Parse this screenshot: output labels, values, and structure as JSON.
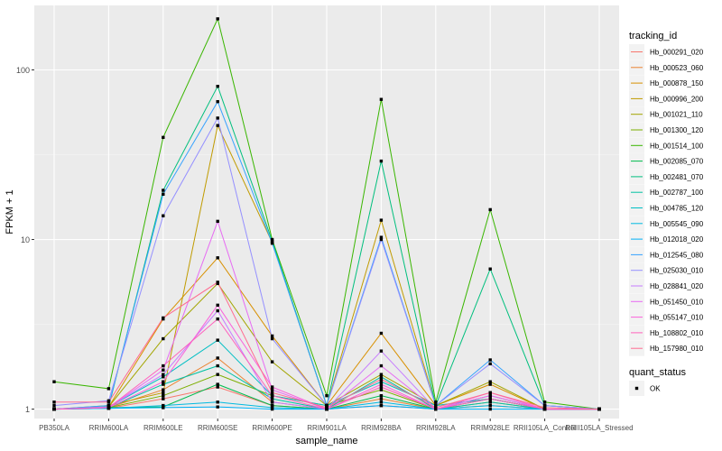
{
  "chart_data": {
    "type": "line",
    "title": "",
    "xlabel": "sample_name",
    "ylabel": "FPKM + 1",
    "y_scale": "log10",
    "ylim": [
      0.88,
      240
    ],
    "y_ticks": [
      {
        "value": 1,
        "label": "1"
      },
      {
        "value": 10,
        "label": "10"
      },
      {
        "value": 100,
        "label": "100"
      }
    ],
    "y_minor_ticks": [
      3.16,
      31.6
    ],
    "grid": true,
    "categories": [
      "PB350LA",
      "RRIM600LA",
      "RRIM600LE",
      "RRIM600SE",
      "RRIM600PE",
      "RRIM901LA",
      "RRIM928BA",
      "RRIM928LA",
      "RRIM928LE",
      "RRII105LA_Control",
      "RRII105LA_Stressed"
    ],
    "legend": {
      "position": "right",
      "title": "tracking_id",
      "shape_title": "quant_status",
      "shape_items": [
        "OK"
      ]
    },
    "series": [
      {
        "name": "Hb_000291_020",
        "color": "#F8766D",
        "values": [
          1.0,
          1.01,
          1.15,
          1.35,
          1.05,
          1.0,
          1.05,
          1.0,
          1.05,
          1.0,
          1.0
        ]
      },
      {
        "name": "Hb_000523_060",
        "color": "#EA8331",
        "values": [
          1.0,
          1.02,
          1.3,
          2.0,
          1.1,
          1.0,
          1.15,
          1.0,
          1.1,
          1.0,
          1.0
        ]
      },
      {
        "name": "Hb_000878_150",
        "color": "#D89000",
        "values": [
          1.0,
          1.03,
          3.4,
          7.8,
          2.7,
          1.05,
          2.8,
          1.05,
          1.4,
          1.0,
          1.0
        ]
      },
      {
        "name": "Hb_000996_200",
        "color": "#C09B00",
        "values": [
          1.0,
          1.05,
          1.25,
          47.0,
          9.6,
          1.05,
          13.0,
          1.05,
          1.15,
          1.0,
          1.0
        ]
      },
      {
        "name": "Hb_001021_110",
        "color": "#A3A500",
        "values": [
          1.0,
          1.03,
          2.6,
          5.5,
          1.9,
          1.05,
          1.6,
          1.05,
          1.45,
          1.0,
          1.0
        ]
      },
      {
        "name": "Hb_001300_120",
        "color": "#7CAE00",
        "values": [
          1.0,
          1.02,
          1.2,
          1.6,
          1.2,
          1.05,
          1.3,
          1.0,
          1.2,
          1.0,
          1.0
        ]
      },
      {
        "name": "Hb_001514_100",
        "color": "#39B600",
        "values": [
          1.45,
          1.32,
          40.0,
          200.0,
          10.0,
          1.2,
          67.0,
          1.1,
          15.0,
          1.1,
          1.0
        ]
      },
      {
        "name": "Hb_002085_070",
        "color": "#00BB4E",
        "values": [
          1.0,
          1.02,
          1.03,
          1.4,
          1.05,
          1.0,
          1.2,
          1.0,
          1.15,
          1.0,
          1.0
        ]
      },
      {
        "name": "Hb_002481_070",
        "color": "#00BF7D",
        "values": [
          1.0,
          1.03,
          19.5,
          80.0,
          9.8,
          1.05,
          29.0,
          1.05,
          6.7,
          1.05,
          1.0
        ]
      },
      {
        "name": "Hb_002787_100",
        "color": "#00C1A3",
        "values": [
          1.0,
          1.02,
          1.4,
          1.8,
          1.15,
          1.0,
          1.55,
          1.0,
          1.1,
          1.0,
          1.0
        ]
      },
      {
        "name": "Hb_004785_120",
        "color": "#00BFC4",
        "values": [
          1.0,
          1.03,
          1.55,
          2.55,
          1.2,
          1.05,
          1.45,
          1.05,
          1.15,
          1.0,
          1.0
        ]
      },
      {
        "name": "Hb_005545_090",
        "color": "#00BAE0",
        "values": [
          1.0,
          1.01,
          1.05,
          1.1,
          1.02,
          1.0,
          1.1,
          1.0,
          1.05,
          1.0,
          1.0
        ]
      },
      {
        "name": "Hb_012018_020",
        "color": "#00B0F6",
        "values": [
          1.0,
          1.01,
          1.02,
          1.03,
          1.0,
          1.0,
          1.05,
          1.0,
          1.0,
          1.0,
          1.0
        ]
      },
      {
        "name": "Hb_012545_080",
        "color": "#35A2FF",
        "values": [
          1.0,
          1.05,
          18.5,
          65.0,
          9.5,
          1.05,
          10.3,
          1.05,
          1.95,
          1.05,
          1.0
        ]
      },
      {
        "name": "Hb_025030_010",
        "color": "#9590FF",
        "values": [
          1.05,
          1.12,
          13.8,
          52.0,
          2.6,
          1.05,
          10.0,
          1.05,
          1.85,
          1.05,
          1.0
        ]
      },
      {
        "name": "Hb_028841_020",
        "color": "#C77CFF",
        "values": [
          1.0,
          1.03,
          1.6,
          3.8,
          1.1,
          1.0,
          2.2,
          1.0,
          1.2,
          1.0,
          1.0
        ]
      },
      {
        "name": "Hb_051450_010",
        "color": "#E76BF3",
        "values": [
          1.0,
          1.02,
          1.7,
          12.8,
          1.3,
          1.0,
          1.8,
          1.0,
          1.2,
          1.0,
          1.0
        ]
      },
      {
        "name": "Hb_055147_010",
        "color": "#FA62DB",
        "values": [
          1.0,
          1.02,
          1.45,
          4.1,
          1.35,
          1.0,
          1.4,
          1.0,
          1.25,
          1.0,
          1.0
        ]
      },
      {
        "name": "Hb_108802_010",
        "color": "#FF62BC",
        "values": [
          1.0,
          1.02,
          1.8,
          3.4,
          1.2,
          1.0,
          1.35,
          1.0,
          1.15,
          1.0,
          1.0
        ]
      },
      {
        "name": "Hb_157980_010",
        "color": "#FF6C91",
        "values": [
          1.1,
          1.1,
          3.45,
          5.6,
          1.25,
          1.02,
          1.5,
          1.02,
          1.25,
          1.02,
          1.0
        ]
      }
    ]
  }
}
